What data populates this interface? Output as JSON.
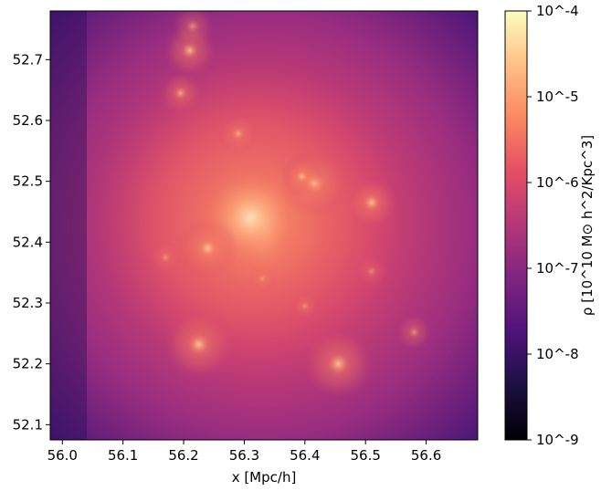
{
  "chart_data": {
    "type": "heatmap",
    "title": "",
    "xlabel": "x [Mpc/h]",
    "ylabel": "",
    "xlim": [
      55.98,
      56.685
    ],
    "ylim": [
      52.075,
      52.78
    ],
    "x_ticks": [
      "56.0",
      "56.1",
      "56.2",
      "56.3",
      "56.4",
      "56.5",
      "56.6"
    ],
    "y_ticks": [
      "52.1",
      "52.2",
      "52.3",
      "52.4",
      "52.5",
      "52.6",
      "52.7"
    ],
    "colorbar": {
      "label": "ρ [10^10 M⊙ h^2/Kpc^3]",
      "scale": "log",
      "range": [
        1e-09,
        0.0001
      ],
      "ticks": [
        "10^-9",
        "10^-8",
        "10^-7",
        "10^-6",
        "10^-5",
        "10^-4"
      ],
      "colormap": "magma"
    },
    "density_peaks": [
      {
        "x": 56.335,
        "y": 52.425,
        "log_rho": -5.2,
        "r": 0.045
      },
      {
        "x": 56.31,
        "y": 52.44,
        "log_rho": -5.6,
        "r": 0.09
      },
      {
        "x": 56.415,
        "y": 52.497,
        "log_rho": -5.9,
        "r": 0.02
      },
      {
        "x": 56.395,
        "y": 52.508,
        "log_rho": -6.1,
        "r": 0.012
      },
      {
        "x": 56.51,
        "y": 52.465,
        "log_rho": -6.0,
        "r": 0.015
      },
      {
        "x": 56.24,
        "y": 52.39,
        "log_rho": -6.0,
        "r": 0.018
      },
      {
        "x": 56.225,
        "y": 52.232,
        "log_rho": -6.0,
        "r": 0.02
      },
      {
        "x": 56.455,
        "y": 52.2,
        "log_rho": -6.0,
        "r": 0.02
      },
      {
        "x": 56.21,
        "y": 52.715,
        "log_rho": -6.1,
        "r": 0.015
      },
      {
        "x": 56.215,
        "y": 52.755,
        "log_rho": -6.5,
        "r": 0.012
      },
      {
        "x": 56.195,
        "y": 52.645,
        "log_rho": -6.3,
        "r": 0.012
      },
      {
        "x": 56.29,
        "y": 52.578,
        "log_rho": -6.4,
        "r": 0.012
      },
      {
        "x": 56.58,
        "y": 52.252,
        "log_rho": -6.5,
        "r": 0.01
      },
      {
        "x": 56.4,
        "y": 52.295,
        "log_rho": -6.6,
        "r": 0.008
      },
      {
        "x": 56.51,
        "y": 52.352,
        "log_rho": -6.8,
        "r": 0.01
      },
      {
        "x": 56.17,
        "y": 52.375,
        "log_rho": -6.8,
        "r": 0.01
      },
      {
        "x": 56.33,
        "y": 52.34,
        "log_rho": -6.7,
        "r": 0.008
      }
    ],
    "background": {
      "center_x": 56.33,
      "center_y": 52.43,
      "log_rho_center": -6.5,
      "log_rho_edge": -7.8
    }
  }
}
